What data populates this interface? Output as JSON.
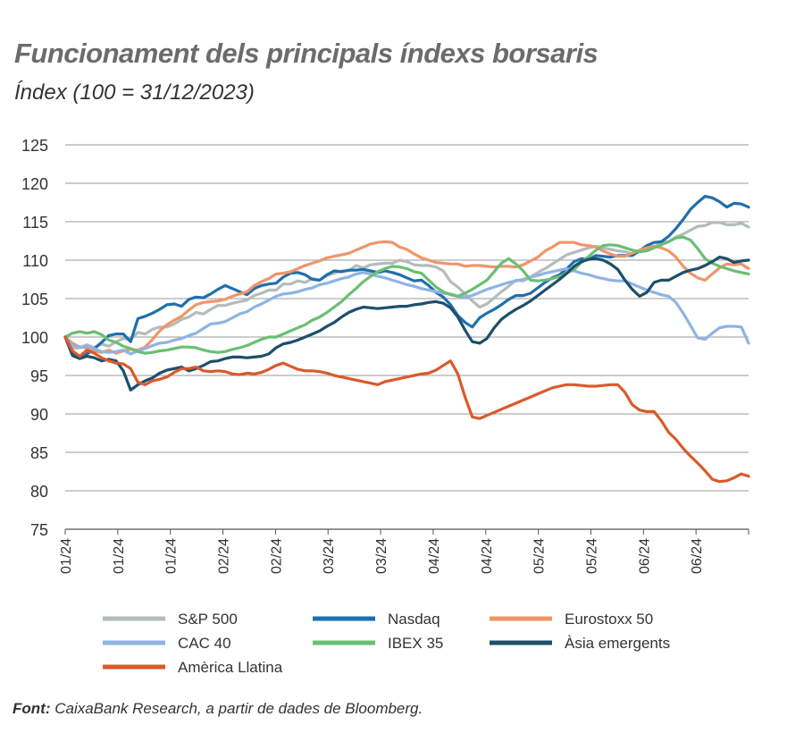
{
  "header": {
    "title": "Funcionament dels principals índexs borsaris",
    "subtitle": "Índex (100 = 31/12/2023)"
  },
  "source": {
    "label": "Font:",
    "text": "CaixaBank Research, a partir de dades de Bloomberg."
  },
  "chart_data": {
    "type": "line",
    "title": "Funcionament dels principals índexs borsaris",
    "ylabel": "Índex (100 = 31/12/2023)",
    "ylim": [
      75,
      125
    ],
    "yticks": [
      75,
      80,
      85,
      90,
      95,
      100,
      105,
      110,
      115,
      120,
      125
    ],
    "x_tick_labels": [
      "01/24",
      "01/24",
      "01/24",
      "02/24",
      "02/24",
      "03/24",
      "03/24",
      "04/24",
      "04/24",
      "05/24",
      "05/24",
      "06/24",
      "06/24"
    ],
    "grid": true,
    "legend_position": "bottom",
    "series": [
      {
        "name": "S&P 500",
        "color": "#b3bcbc",
        "values": [
          100,
          98.5,
          98.6,
          99,
          98.6,
          99.1,
          98.8,
          99.4,
          99.8,
          99.7,
          100.6,
          100.4,
          101,
          101.3,
          101.3,
          101.7,
          102.3,
          102.6,
          103.2,
          103,
          103.6,
          104.1,
          104.1,
          104.4,
          104.6,
          104.8,
          105.4,
          105.7,
          106.1,
          106.1,
          106.9,
          106.9,
          107.3,
          107.1,
          107.6,
          107.4,
          108,
          108.3,
          108.6,
          108.6,
          109.3,
          109,
          109.4,
          109.5,
          109.6,
          109.6,
          110,
          109.8,
          109.4,
          109.3,
          109.3,
          109.1,
          108.6,
          107.2,
          106.5,
          105.6,
          104.7,
          103.9,
          104.3,
          105.1,
          105.9,
          106.6,
          107.4,
          107.3,
          107.8,
          108.4,
          108.9,
          109.5,
          110.1,
          110.7,
          111,
          111.3,
          111.6,
          111.8,
          111.6,
          111.4,
          111.2,
          111.1,
          110.8,
          111.1,
          111.3,
          111.7,
          112.3,
          112.4,
          113,
          113.4,
          113.9,
          114.4,
          114.5,
          114.9,
          114.9,
          114.6,
          114.6,
          114.8,
          114.3
        ]
      },
      {
        "name": "Nasdaq",
        "color": "#1f6fad",
        "values": [
          100,
          98,
          97.3,
          97.8,
          98.5,
          99.3,
          100.2,
          100.4,
          100.4,
          99.4,
          102.4,
          102.7,
          103.1,
          103.6,
          104.2,
          104.3,
          104,
          104.9,
          105.2,
          105.1,
          105.6,
          106.2,
          106.7,
          106.3,
          105.9,
          105.5,
          106.3,
          106.7,
          106.9,
          107,
          107.8,
          108.3,
          108.4,
          108.1,
          107.5,
          107.4,
          108.1,
          108.6,
          108.5,
          108.7,
          108.7,
          108.8,
          108.6,
          108.4,
          108.6,
          108.4,
          108.1,
          107.7,
          107.3,
          107.4,
          106.7,
          105.8,
          105.2,
          104.2,
          102.8,
          101.9,
          101.3,
          102.5,
          103.1,
          103.6,
          104.2,
          104.9,
          105.4,
          105.4,
          105.7,
          106.4,
          107.1,
          107.7,
          108.1,
          108.9,
          109.8,
          110.2,
          110.1,
          110.6,
          110.5,
          110.4,
          110.6,
          110.6,
          110.6,
          111.2,
          111.9,
          112.3,
          112.4,
          113.1,
          114.1,
          115.3,
          116.6,
          117.5,
          118.3,
          118.1,
          117.6,
          116.9,
          117.4,
          117.3,
          116.9
        ]
      },
      {
        "name": "Eurostoxx 50",
        "color": "#f0956a",
        "values": [
          100,
          99.2,
          98.7,
          98.6,
          98.2,
          98,
          98.3,
          97.9,
          98.2,
          98.4,
          98.3,
          98.7,
          99.7,
          100.8,
          101.6,
          102.2,
          102.7,
          103.5,
          104.2,
          104.5,
          104.6,
          104.7,
          104.9,
          105.3,
          105.6,
          105.9,
          106.7,
          107.2,
          107.6,
          108.2,
          108.3,
          108.5,
          108.9,
          109.3,
          109.6,
          109.9,
          110.3,
          110.5,
          110.7,
          110.9,
          111.3,
          111.7,
          112.1,
          112.3,
          112.4,
          112.3,
          111.7,
          111.4,
          110.8,
          110.3,
          110,
          109.7,
          109.6,
          109.5,
          109.5,
          109.2,
          109.3,
          109.3,
          109.2,
          109.1,
          109.2,
          109.2,
          109.1,
          109.4,
          109.9,
          110.4,
          111.2,
          111.7,
          112.3,
          112.3,
          112.3,
          112,
          111.9,
          111.7,
          111.2,
          110.8,
          110.5,
          110.5,
          110.9,
          111.3,
          111.6,
          111.8,
          111.6,
          111.2,
          110.4,
          109.2,
          108.3,
          107.7,
          107.4,
          108.2,
          109,
          109.5,
          109.4,
          109.5,
          108.9
        ]
      },
      {
        "name": "CAC 40",
        "color": "#8eb4e3",
        "values": [
          100,
          98.9,
          98.7,
          98.8,
          98.5,
          98.1,
          98,
          98.1,
          98.3,
          97.8,
          98.2,
          98.5,
          98.9,
          99.2,
          99.3,
          99.6,
          99.8,
          100.2,
          100.5,
          101.1,
          101.7,
          101.8,
          102,
          102.5,
          103,
          103.3,
          103.9,
          104.3,
          104.8,
          105.3,
          105.6,
          105.7,
          105.9,
          106.2,
          106.4,
          106.8,
          107,
          107.3,
          107.6,
          107.8,
          108.2,
          108.4,
          108.2,
          107.9,
          107.7,
          107.4,
          107.1,
          106.8,
          106.6,
          106.3,
          106.1,
          105.9,
          105.7,
          105.6,
          105.3,
          105.2,
          105.4,
          105.8,
          106.2,
          106.5,
          106.8,
          107.1,
          107.3,
          107.5,
          107.8,
          108,
          108.3,
          108.5,
          108.7,
          108.9,
          108.6,
          108.3,
          108.1,
          107.8,
          107.6,
          107.4,
          107.3,
          107.3,
          106.9,
          106.5,
          106.1,
          105.8,
          105.5,
          105.3,
          104.5,
          103.1,
          101.5,
          99.9,
          99.7,
          100.5,
          101.2,
          101.4,
          101.4,
          101.3,
          99.2
        ]
      },
      {
        "name": "IBEX 35",
        "color": "#6abf73",
        "values": [
          100,
          100.5,
          100.7,
          100.5,
          100.7,
          100.3,
          99.6,
          99.3,
          98.8,
          98.5,
          98.1,
          97.9,
          98,
          98.2,
          98.3,
          98.5,
          98.7,
          98.7,
          98.6,
          98.3,
          98.1,
          98,
          98.1,
          98.4,
          98.6,
          98.9,
          99.3,
          99.7,
          100,
          100,
          100.4,
          100.8,
          101.2,
          101.6,
          102.2,
          102.6,
          103.2,
          103.9,
          104.6,
          105.5,
          106.3,
          107.2,
          107.9,
          108.5,
          108.9,
          109.2,
          109.1,
          108.9,
          108.5,
          108.3,
          107.4,
          106.5,
          105.9,
          105.5,
          105.3,
          105.7,
          106.2,
          106.8,
          107.4,
          108.5,
          109.6,
          110.2,
          109.5,
          108.6,
          107.4,
          107.3,
          107.4,
          107.6,
          107.9,
          108.3,
          108.8,
          109.7,
          110.5,
          111.3,
          111.9,
          112,
          111.9,
          111.6,
          111.3,
          111.1,
          111.2,
          111.6,
          112,
          112.4,
          112.9,
          113,
          112.6,
          111.5,
          110.2,
          109.6,
          109.2,
          108.9,
          108.6,
          108.4,
          108.2
        ]
      },
      {
        "name": "Àsia emergents",
        "color": "#1d4f6b",
        "values": [
          100,
          97.6,
          97.2,
          97.5,
          97.3,
          96.9,
          97.1,
          96.9,
          95.6,
          93.1,
          93.8,
          94.3,
          94.7,
          95.3,
          95.7,
          95.9,
          96.1,
          95.6,
          95.9,
          96.3,
          96.8,
          96.9,
          97.2,
          97.4,
          97.4,
          97.3,
          97.4,
          97.5,
          97.8,
          98.6,
          99.1,
          99.3,
          99.6,
          100,
          100.4,
          100.8,
          101.4,
          101.9,
          102.6,
          103.2,
          103.6,
          103.9,
          103.8,
          103.7,
          103.8,
          103.9,
          104,
          104,
          104.2,
          104.3,
          104.5,
          104.6,
          104.4,
          103.8,
          102.6,
          100.9,
          99.4,
          99.2,
          99.8,
          101.2,
          102.3,
          103,
          103.6,
          104.1,
          104.7,
          105.4,
          106.1,
          106.8,
          107.5,
          108.3,
          109.2,
          109.8,
          110.1,
          110.2,
          110,
          109.5,
          108.8,
          107.4,
          106.2,
          105.3,
          105.8,
          107.1,
          107.4,
          107.4,
          107.9,
          108.4,
          108.7,
          108.9,
          109.3,
          109.8,
          110.4,
          110.2,
          109.7,
          109.9,
          110
        ]
      },
      {
        "name": "Amèrica Llatina",
        "color": "#d95a2b",
        "values": [
          100,
          98.2,
          97.5,
          98.3,
          97.9,
          97.3,
          96.9,
          96.6,
          96.5,
          95.9,
          94.1,
          93.8,
          94.3,
          94.5,
          94.8,
          95.4,
          95.9,
          95.9,
          96.1,
          95.6,
          95.5,
          95.6,
          95.5,
          95.2,
          95.1,
          95.3,
          95.2,
          95.4,
          95.8,
          96.3,
          96.6,
          96.2,
          95.8,
          95.6,
          95.6,
          95.5,
          95.3,
          95,
          94.8,
          94.6,
          94.4,
          94.2,
          94,
          93.8,
          94.2,
          94.4,
          94.6,
          94.8,
          95,
          95.2,
          95.3,
          95.7,
          96.3,
          96.9,
          95.2,
          92.2,
          89.6,
          89.4,
          89.8,
          90.2,
          90.6,
          91,
          91.4,
          91.8,
          92.2,
          92.6,
          93,
          93.4,
          93.6,
          93.8,
          93.8,
          93.7,
          93.6,
          93.6,
          93.7,
          93.8,
          93.8,
          92.8,
          91.2,
          90.5,
          90.3,
          90.3,
          89.1,
          87.6,
          86.7,
          85.5,
          84.5,
          83.6,
          82.6,
          81.5,
          81.2,
          81.3,
          81.7,
          82.2,
          81.9
        ]
      }
    ]
  }
}
